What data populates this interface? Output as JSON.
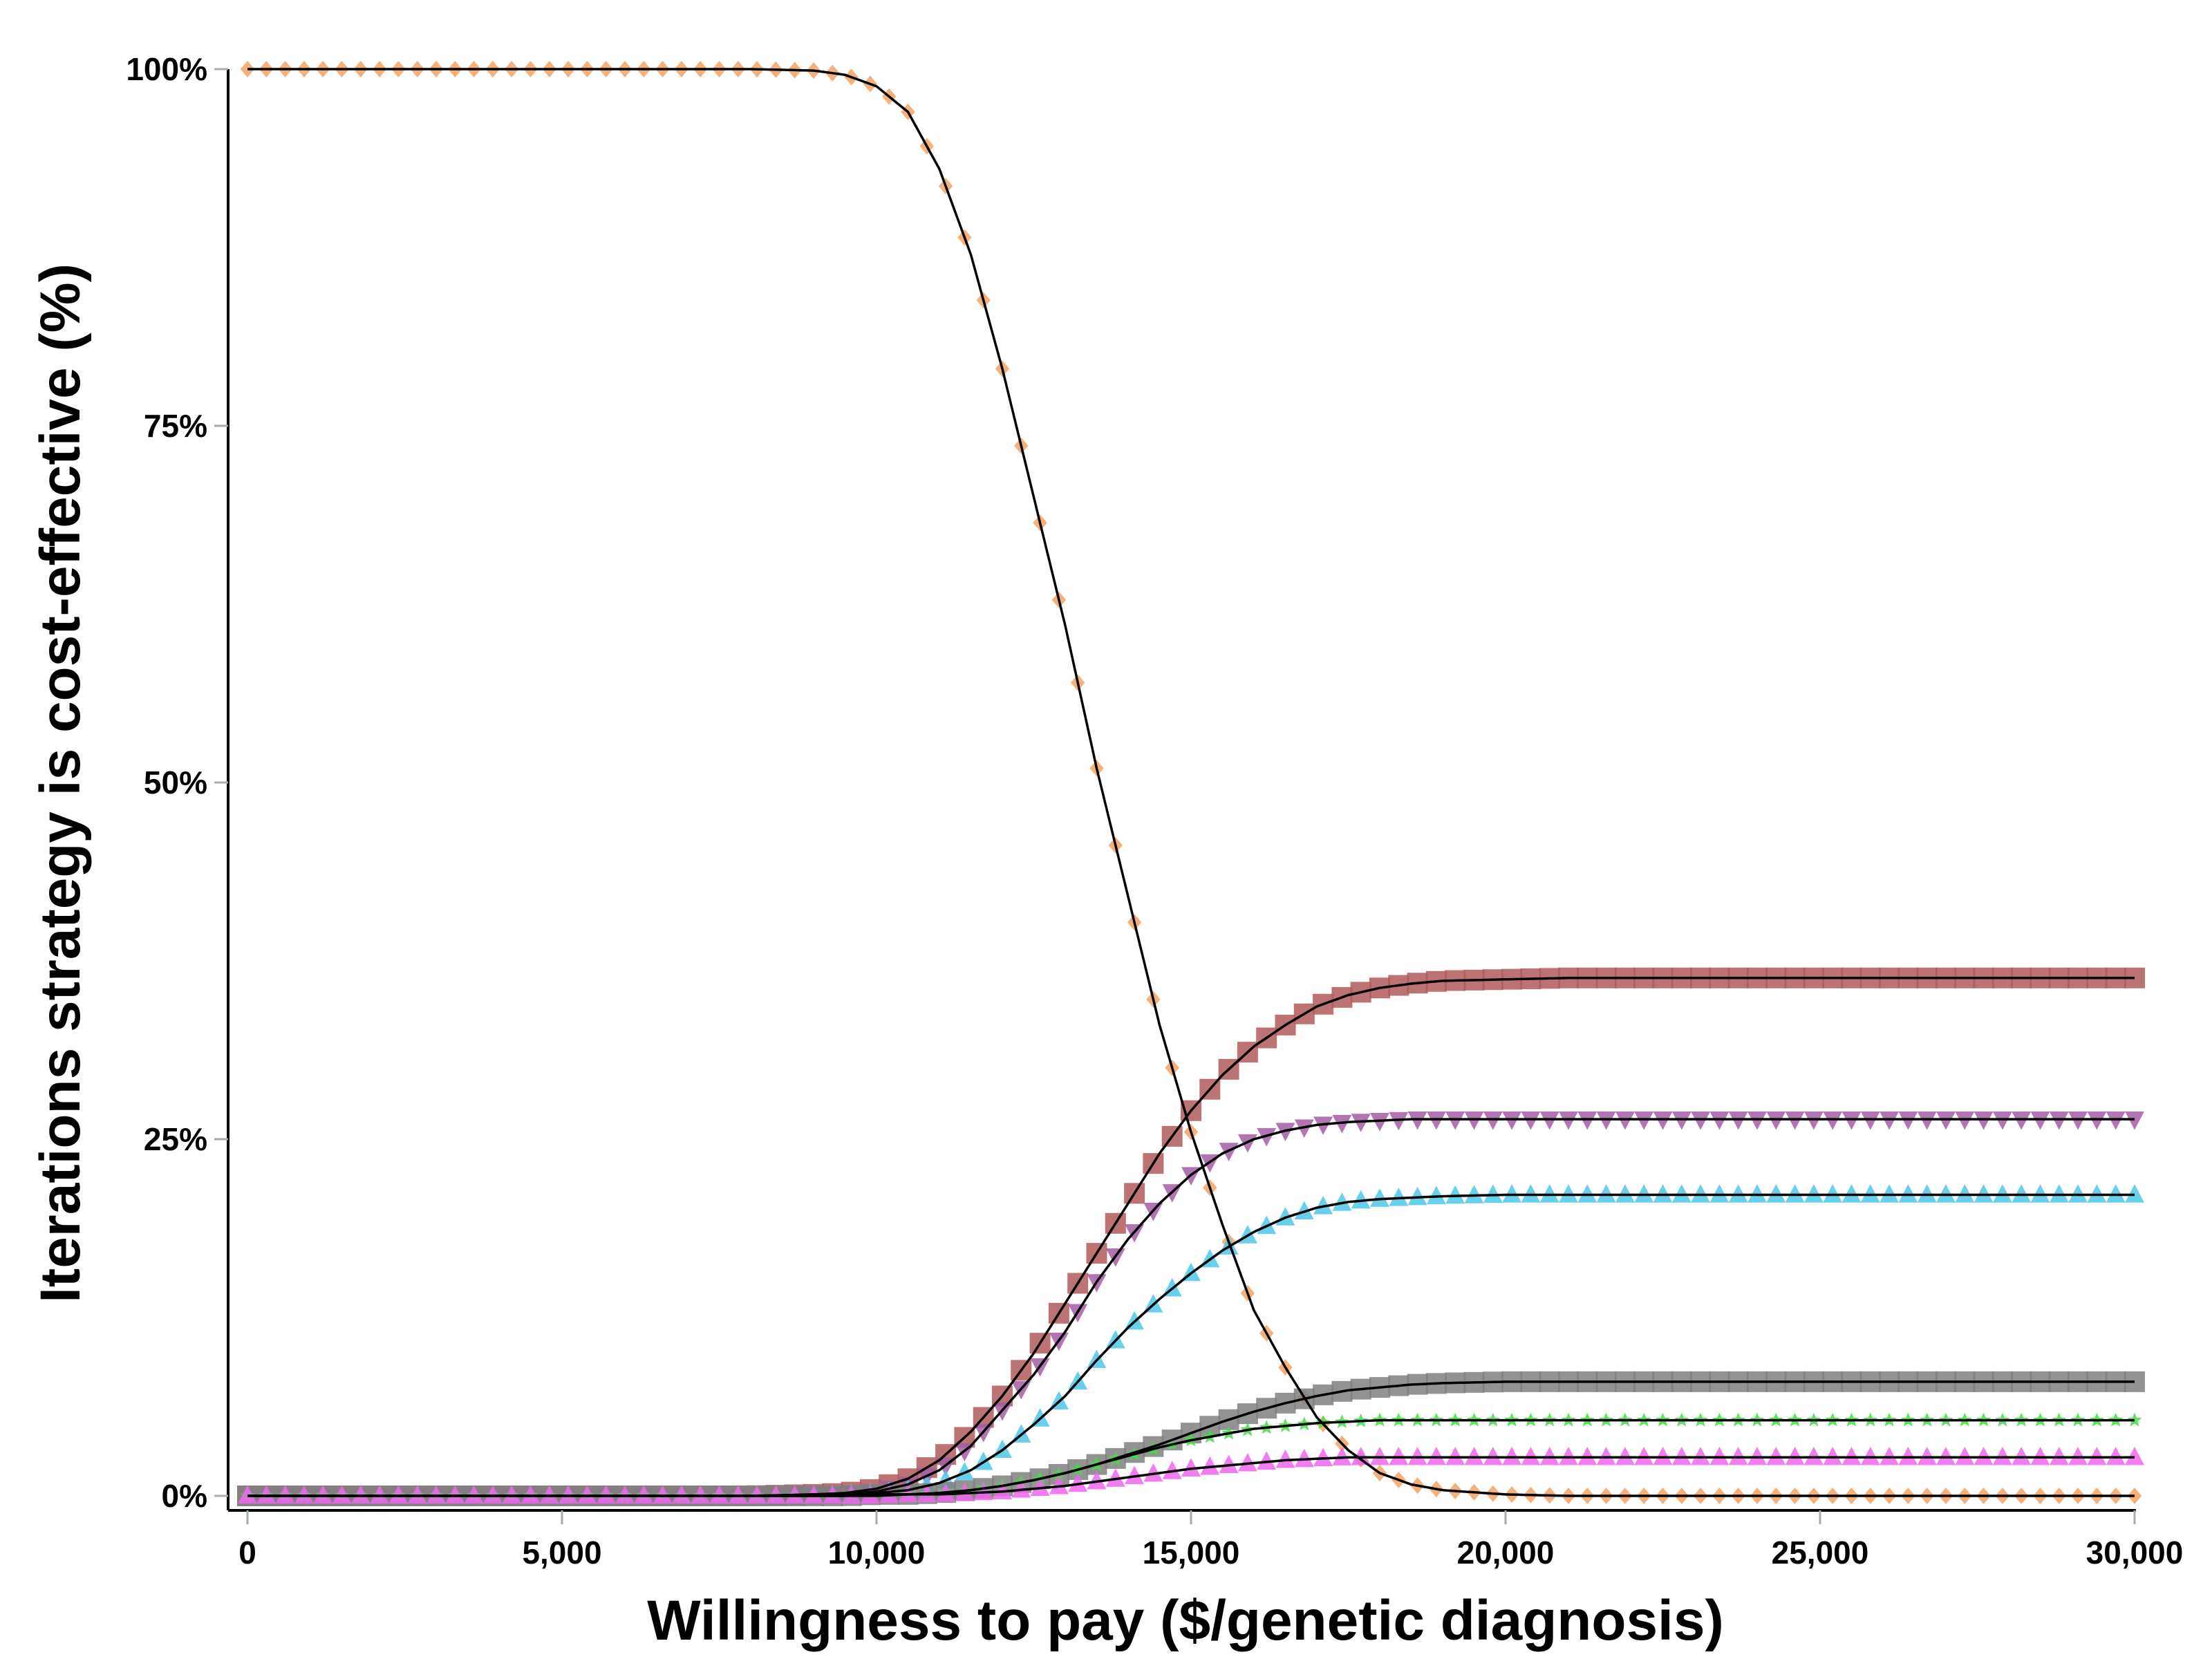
{
  "chart_data": {
    "type": "line",
    "title": "",
    "xlabel": "Willingness to pay ($/genetic diagnosis)",
    "ylabel": "Iterations strategy is cost-effective (%)",
    "xlim": [
      0,
      30000
    ],
    "ylim": [
      0,
      100
    ],
    "x_ticks": [
      0,
      5000,
      10000,
      15000,
      20000,
      25000,
      30000
    ],
    "x_tick_labels": [
      "0",
      "5,000",
      "10,000",
      "15,000",
      "20,000",
      "25,000",
      "30,000"
    ],
    "y_ticks": [
      0,
      25,
      50,
      75,
      100
    ],
    "y_tick_labels": [
      "0%",
      "25%",
      "50%",
      "75%",
      "100%"
    ],
    "grid": false,
    "legend": "none",
    "x": [
      0,
      2000,
      4000,
      6000,
      8000,
      9000,
      9500,
      10000,
      10500,
      11000,
      11500,
      12000,
      12500,
      13000,
      13500,
      14000,
      14500,
      15000,
      15500,
      16000,
      16500,
      17000,
      17500,
      18000,
      18500,
      19000,
      20000,
      21000,
      22000,
      24000,
      26000,
      28000,
      30000
    ],
    "series": [
      {
        "marker": "diamond",
        "color": "#f4a261",
        "values": [
          100,
          100,
          100,
          100,
          100,
          99.9,
          99.6,
          98.8,
          97,
          93,
          87,
          79,
          70,
          61,
          51,
          42,
          33,
          25.5,
          19,
          13,
          9,
          5.5,
          3.2,
          1.6,
          0.8,
          0.4,
          0.1,
          0,
          0,
          0,
          0,
          0,
          0
        ]
      },
      {
        "marker": "square",
        "color": "#b05a5a",
        "values": [
          0,
          0,
          0,
          0,
          0,
          0.1,
          0.2,
          0.5,
          1.2,
          2.5,
          4.5,
          7,
          10,
          13.5,
          17,
          20.5,
          24,
          27,
          29.5,
          31.5,
          33,
          34.3,
          35.1,
          35.6,
          35.9,
          36.1,
          36.2,
          36.3,
          36.3,
          36.3,
          36.3,
          36.3,
          36.3
        ]
      },
      {
        "marker": "triangle-down",
        "color": "#a35ea3",
        "values": [
          0,
          0,
          0,
          0,
          0,
          0.1,
          0.1,
          0.3,
          0.8,
          1.8,
          3.5,
          6,
          8.5,
          11.5,
          15,
          18,
          20.5,
          22.5,
          24,
          25,
          25.6,
          26,
          26.2,
          26.3,
          26.4,
          26.4,
          26.4,
          26.4,
          26.4,
          26.4,
          26.4,
          26.4,
          26.4
        ]
      },
      {
        "marker": "triangle-up",
        "color": "#4fc8e8",
        "values": [
          0,
          0,
          0,
          0,
          0,
          0,
          0.1,
          0.2,
          0.4,
          0.9,
          1.8,
          3.2,
          5,
          7,
          9.5,
          11.8,
          13.8,
          15.6,
          17.2,
          18.5,
          19.5,
          20.2,
          20.6,
          20.8,
          20.9,
          21,
          21.1,
          21.1,
          21.1,
          21.1,
          21.1,
          21.1,
          21.1
        ]
      },
      {
        "marker": "square",
        "color": "#808080",
        "values": [
          0,
          0,
          0,
          0,
          0,
          0,
          0,
          0.1,
          0.1,
          0.2,
          0.4,
          0.7,
          1.1,
          1.6,
          2.2,
          2.9,
          3.6,
          4.4,
          5.2,
          5.9,
          6.5,
          7,
          7.4,
          7.6,
          7.8,
          7.9,
          8,
          8,
          8,
          8,
          8,
          8,
          8
        ]
      },
      {
        "marker": "star",
        "color": "#44dd44",
        "values": [
          0,
          0,
          0,
          0,
          0,
          0,
          0,
          0.1,
          0.1,
          0.2,
          0.4,
          0.7,
          1.1,
          1.6,
          2.2,
          2.8,
          3.4,
          3.9,
          4.3,
          4.7,
          4.9,
          5.1,
          5.2,
          5.3,
          5.3,
          5.3,
          5.3,
          5.3,
          5.3,
          5.3,
          5.3,
          5.3,
          5.3
        ]
      },
      {
        "marker": "triangle-up",
        "color": "#ee66ee",
        "values": [
          0,
          0,
          0,
          0,
          0,
          0,
          0,
          0,
          0.1,
          0.1,
          0.2,
          0.3,
          0.5,
          0.7,
          1,
          1.3,
          1.6,
          1.9,
          2.1,
          2.3,
          2.5,
          2.6,
          2.7,
          2.7,
          2.7,
          2.7,
          2.7,
          2.7,
          2.7,
          2.7,
          2.7,
          2.7,
          2.7
        ]
      }
    ]
  }
}
